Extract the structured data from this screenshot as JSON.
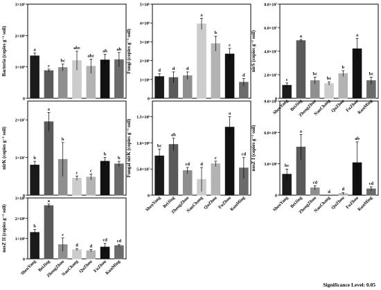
{
  "footer": "Significance Level: 0.05",
  "colors": [
    "#1a1a1a",
    "#5a5a5a",
    "#8f8f8f",
    "#cccccc",
    "#b3b3b3",
    "#111111",
    "#6b6b6b"
  ],
  "chart_data": [
    {
      "type": "bar",
      "ylabel": "Bacteria (copies g⁻¹ soil)",
      "categories": [
        "ShenYang",
        "BeiJing",
        "ZhengZhou",
        "NanChang",
        "QuZhou",
        "FuZhou",
        "KunMing"
      ],
      "values": [
        1350000000.0,
        880000000.0,
        980000000.0,
        1200000000.0,
        1020000000.0,
        1220000000.0,
        1230000000.0
      ],
      "errors": [
        90000000.0,
        50000000.0,
        110000000.0,
        300000000.0,
        230000000.0,
        180000000.0,
        230000000.0
      ],
      "letters": [
        "a",
        "c",
        "bc",
        "abc",
        "abc",
        "ab",
        "ab"
      ],
      "yticks": [
        0,
        1000000000.0,
        2000000000.0,
        3000000000.0
      ],
      "yticklabels": [
        "0",
        "1×10⁹",
        "2×10⁹",
        "3×10⁹"
      ],
      "ylim": [
        0,
        3000000000.0
      ],
      "show_xlabels": false
    },
    {
      "type": "bar",
      "ylabel": "Fungi (copies g⁻¹ soil)",
      "categories": [
        "ShenYang",
        "BeiJing",
        "ZhengZhou",
        "NanChang",
        "QuZhou",
        "FuZhou",
        "KunMing"
      ],
      "values": [
        1150000.0,
        1100000.0,
        1200000.0,
        3950000.0,
        2900000.0,
        2350000.0,
        850000.0
      ],
      "errors": [
        150000.0,
        300000.0,
        200000.0,
        300000.0,
        400000.0,
        300000.0,
        200000.0
      ],
      "letters": [
        "d",
        "d",
        "d",
        "a",
        "b",
        "c",
        "d"
      ],
      "yticks": [
        0,
        1000000.0,
        2000000.0,
        3000000.0,
        4000000.0,
        5000000.0
      ],
      "yticklabels": [
        "0",
        "1×10⁶",
        "2×10⁶",
        "3×10⁶",
        "4×10⁶",
        "5×10⁶"
      ],
      "ylim": [
        0,
        5000000.0
      ],
      "show_xlabels": false
    },
    {
      "type": "bar",
      "ylabel": "nirS (copies g⁻¹ soil)",
      "categories": [
        "ShenYang",
        "BeiJing",
        "ZhengZhou",
        "NanChang",
        "QuZhou",
        "FuZhou",
        "KunMing"
      ],
      "values": [
        11000000.0,
        49000000.0,
        15000000.0,
        12500000.0,
        21000000.0,
        42000000.0,
        15000000.0
      ],
      "errors": [
        2000000.0,
        1000000.0,
        3000000.0,
        1500000.0,
        2500000.0,
        9000000.0,
        3000000.0
      ],
      "letters": [
        "c",
        "a",
        "bc",
        "bc",
        "b",
        "a",
        "bc"
      ],
      "yticks": [
        0,
        20000000.0,
        40000000.0,
        60000000.0,
        80000000.0
      ],
      "yticklabels": [
        "0",
        "2.0×10⁷",
        "4.0×10⁷",
        "6.0×10⁷",
        "8.0×10⁷"
      ],
      "ylim": [
        0,
        80000000.0
      ],
      "show_xlabels": true
    },
    {
      "type": "bar",
      "ylabel": "nirK (copies g⁻¹ soil)",
      "categories": [
        "ShenYang",
        "BeiJing",
        "ZhengZhou",
        "NanChang",
        "QuZhou",
        "FuZhou",
        "KunMing"
      ],
      "values": [
        8000000.0,
        19500000.0,
        9500000.0,
        4500000.0,
        4800000.0,
        9000000.0,
        8300000.0
      ],
      "errors": [
        1000000.0,
        2500000.0,
        4500000.0,
        600000.0,
        800000.0,
        1000000.0,
        700000.0
      ],
      "letters": [
        "b",
        "a",
        "b",
        "c",
        "c",
        "b",
        "b"
      ],
      "yticks": [
        0,
        10000000.0,
        20000000.0
      ],
      "yticklabels": [
        "0",
        "1×10⁷",
        "2×10⁷"
      ],
      "ylim": [
        0,
        25000000.0
      ],
      "show_xlabels": false
    },
    {
      "type": "bar",
      "ylabel": "Fungal nirK (copies g⁻¹ soil)",
      "categories": [
        "ShenYang",
        "BeiJing",
        "ZhengZhou",
        "NanChang",
        "QuZhou",
        "FuZhou",
        "KunMing"
      ],
      "values": [
        75000000.0,
        97000000.0,
        47000000.0,
        30000000.0,
        60000000.0,
        130000000.0,
        52000000.0
      ],
      "errors": [
        13000000.0,
        12000000.0,
        6000000.0,
        23000000.0,
        5000000.0,
        20000000.0,
        20000000.0
      ],
      "letters": [
        "bc",
        "ab",
        "cd",
        "d",
        "c",
        "a",
        "cd"
      ],
      "yticks": [
        0,
        50000000.0,
        100000000.0,
        150000000.0
      ],
      "yticklabels": [
        "0",
        "5.0×10⁷",
        "1.0×10⁸",
        "1.5×10⁸"
      ],
      "ylim": [
        0,
        180000000.0
      ],
      "show_xlabels": true
    },
    {
      "type": "bar",
      "ylabel": "nosZ I (copies g⁻¹ soil)",
      "categories": [
        "ShenYang",
        "BeiJing",
        "ZhengZhou",
        "NanChang",
        "QuZhou",
        "FuZhou",
        "KunMing"
      ],
      "values": [
        2000000.0,
        4600000.0,
        700000.0,
        0,
        150000.0,
        3100000.0,
        600000.0
      ],
      "errors": [
        500000.0,
        1200000.0,
        200000.0,
        0,
        100000.0,
        2000000.0,
        200000.0
      ],
      "letters": [
        "bc",
        "a",
        "cd",
        "d",
        "d",
        "ab",
        "cd"
      ],
      "yticks": [
        0,
        3000000.0,
        6000000.0,
        9000000.0
      ],
      "yticklabels": [
        "0",
        "3.0×10⁶",
        "6.0×10⁶",
        "9.0×10⁶"
      ],
      "ylim": [
        0,
        9000000.0
      ],
      "show_xlabels": true
    },
    {
      "type": "bar",
      "ylabel": "nosZ II (copies g⁻¹ soil)",
      "categories": [
        "ShenYang",
        "BeiJing",
        "ZhengZhou",
        "NanChang",
        "QuZhou",
        "FuZhou",
        "KunMing"
      ],
      "values": [
        130000000.0,
        262000000.0,
        70000000.0,
        45000000.0,
        40000000.0,
        58000000.0,
        65000000.0
      ],
      "errors": [
        15000000.0,
        8000000.0,
        33000000.0,
        6000000.0,
        6000000.0,
        18000000.0,
        6000000.0
      ],
      "letters": [
        "b",
        "a",
        "c",
        "d",
        "d",
        "cd",
        "cd"
      ],
      "yticks": [
        0,
        100000000.0,
        200000000.0,
        300000000.0
      ],
      "yticklabels": [
        "0",
        "1×10⁸",
        "2×10⁸",
        "3×10⁸"
      ],
      "ylim": [
        0,
        300000000.0
      ],
      "show_xlabels": true
    }
  ]
}
